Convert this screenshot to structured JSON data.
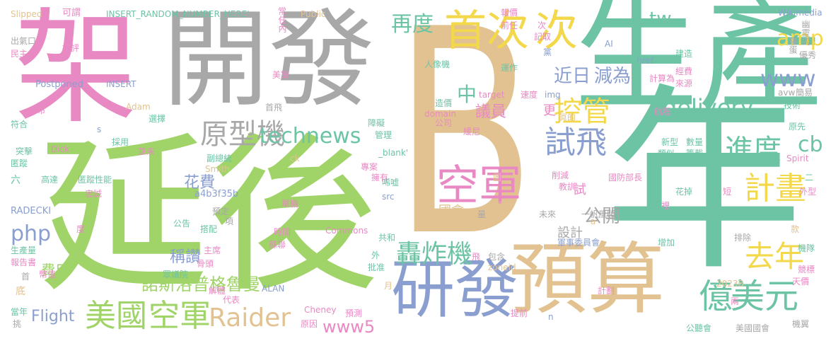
{
  "palette": {
    "green": "#a0d468",
    "teal": "#6cc4a4",
    "tan": "#e2c290",
    "pink": "#e889c3",
    "gray": "#a8a8a8",
    "blue": "#8a9fd0",
    "yellow": "#f2d84a",
    "orange": "#f0a868"
  },
  "words": [
    {
      "text": "B",
      "color": "tan"
    },
    {
      "text": "延後",
      "color": "green"
    },
    {
      "text": "生產",
      "color": "teal"
    },
    {
      "text": "年",
      "color": "teal"
    },
    {
      "text": "開發",
      "color": "gray"
    },
    {
      "text": "架",
      "color": "pink"
    },
    {
      "text": "預算",
      "color": "tan"
    },
    {
      "text": "研發",
      "color": "blue"
    },
    {
      "text": "首次",
      "color": "yellow"
    },
    {
      "text": "次",
      "color": "yellow"
    },
    {
      "text": "空軍",
      "color": "pink"
    },
    {
      "text": "美國",
      "color": "green"
    },
    {
      "text": "空軍",
      "color": "green"
    },
    {
      "text": "美元",
      "color": "teal"
    },
    {
      "text": "億",
      "color": "teal"
    },
    {
      "text": "去年",
      "color": "yellow"
    },
    {
      "text": "計畫",
      "color": "yellow"
    },
    {
      "text": "進度",
      "color": "teal"
    },
    {
      "text": "試飛",
      "color": "blue"
    },
    {
      "text": "控管",
      "color": "yellow"
    },
    {
      "text": "原型機",
      "color": "gray"
    },
    {
      "text": "technews",
      "color": "teal"
    },
    {
      "text": "delivery",
      "color": "teal"
    },
    {
      "text": "Raider",
      "color": "tan"
    },
    {
      "text": "轟炸機",
      "color": "teal"
    },
    {
      "text": "再度",
      "color": "teal"
    },
    {
      "text": "近日",
      "color": "blue"
    },
    {
      "text": "減為",
      "color": "blue"
    },
    {
      "text": "www",
      "color": "blue"
    },
    {
      "text": "amp",
      "color": "yellow"
    },
    {
      "text": "tw",
      "color": "teal"
    },
    {
      "text": "cb",
      "color": "teal"
    },
    {
      "text": "php",
      "color": "blue"
    },
    {
      "text": "www5",
      "color": "pink"
    },
    {
      "text": "公開",
      "color": "gray"
    },
    {
      "text": "中",
      "color": "teal"
    },
    {
      "text": "議員",
      "color": "pink"
    },
    {
      "text": "諾斯洛普格魯曼",
      "color": "green"
    },
    {
      "text": "Flight",
      "color": "blue"
    },
    {
      "text": "稱讚",
      "color": "blue"
    },
    {
      "text": "花費",
      "color": "blue"
    },
    {
      "text": "費用",
      "color": "green"
    },
    {
      "text": "設計",
      "color": "gray"
    },
    {
      "text": "更",
      "color": "pink"
    },
    {
      "text": "試",
      "color": "pink"
    },
    {
      "text": "國會",
      "color": "tan"
    },
    {
      "text": "INSERT_RANDOM_NUMBER_HERE'",
      "color": "teal"
    },
    {
      "text": "Slipped",
      "color": "tan"
    },
    {
      "text": "可謂",
      "color": "pink"
    },
    {
      "text": "Public",
      "color": "tan"
    },
    {
      "text": "報價",
      "color": "pink"
    },
    {
      "text": "Wikimedia",
      "color": "blue"
    },
    {
      "text": "前任",
      "color": "pink"
    },
    {
      "text": "記取",
      "color": "pink"
    },
    {
      "text": "次",
      "color": "pink"
    },
    {
      "text": "幽靈式",
      "color": "gray"
    },
    {
      "text": "羅蛋",
      "color": "gray"
    },
    {
      "text": "優秀",
      "color": "gray"
    },
    {
      "text": "出氣口",
      "color": "gray"
    },
    {
      "text": "民主",
      "color": "pink"
    },
    {
      "text": "批評",
      "color": "pink"
    },
    {
      "text": "任內",
      "color": "pink"
    },
    {
      "text": "人像機",
      "color": "teal"
    },
    {
      "text": "運作",
      "color": "teal"
    },
    {
      "text": "黨",
      "color": "blue"
    },
    {
      "text": "建造",
      "color": "teal"
    },
    {
      "text": "AI",
      "color": "blue"
    },
    {
      "text": "href",
      "color": "blue"
    },
    {
      "text": "經費",
      "color": "pink"
    },
    {
      "text": "來源",
      "color": "pink"
    },
    {
      "text": "計算為",
      "color": "pink"
    },
    {
      "text": "簡易",
      "color": "gray"
    },
    {
      "text": "技術",
      "color": "teal"
    },
    {
      "text": "avw",
      "color": "gray"
    },
    {
      "text": "Postponed",
      "color": "blue"
    },
    {
      "text": "INSERT",
      "color": "blue"
    },
    {
      "text": "美軍",
      "color": "pink"
    },
    {
      "text": "target",
      "color": "pink"
    },
    {
      "text": "img",
      "color": "blue"
    },
    {
      "text": "速度",
      "color": "pink"
    },
    {
      "text": "公布",
      "color": "pink"
    },
    {
      "text": "Adam",
      "color": "tan"
    },
    {
      "text": "首飛",
      "color": "gray"
    },
    {
      "text": "造價",
      "color": "teal"
    },
    {
      "text": "domain",
      "color": "pink"
    },
    {
      "text": "公司",
      "color": "pink"
    },
    {
      "text": "眞的",
      "color": "tan"
    },
    {
      "text": "航程",
      "color": "pink"
    },
    {
      "text": "符合",
      "color": "teal"
    },
    {
      "text": "選擇",
      "color": "teal"
    },
    {
      "text": "s",
      "color": "blue"
    },
    {
      "text": "障礙",
      "color": "teal"
    },
    {
      "text": "管理",
      "color": "teal"
    },
    {
      "text": "緩尼",
      "color": "pink"
    },
    {
      "text": "原先",
      "color": "teal"
    },
    {
      "text": "突擊",
      "color": "teal"
    },
    {
      "text": "Dick",
      "color": "pink"
    },
    {
      "text": "採用",
      "color": "teal"
    },
    {
      "text": "並未",
      "color": "pink"
    },
    {
      "text": "副總統",
      "color": "teal"
    },
    {
      "text": "_blank'",
      "color": "teal"
    },
    {
      "text": "新型",
      "color": "teal"
    },
    {
      "text": "數量",
      "color": "teal"
    },
    {
      "text": "類似",
      "color": "teal"
    },
    {
      "text": "籌載",
      "color": "teal"
    },
    {
      "text": "Spirit",
      "color": "pink"
    },
    {
      "text": "匿蹤",
      "color": "teal"
    },
    {
      "text": "Smith",
      "color": "tan"
    },
    {
      "text": "ck",
      "color": "tan"
    },
    {
      "text": "專案",
      "color": "pink"
    },
    {
      "text": "擁有",
      "color": "pink"
    },
    {
      "text": "削減",
      "color": "pink"
    },
    {
      "text": "教訓",
      "color": "pink"
    },
    {
      "text": "國防部長",
      "color": "pink"
    },
    {
      "text": "外型",
      "color": "pink"
    },
    {
      "text": "二",
      "color": "teal"
    },
    {
      "text": "六",
      "color": "teal"
    },
    {
      "text": "高達",
      "color": "teal"
    },
    {
      "text": "匿蹤性能",
      "color": "teal"
    },
    {
      "text": "圖",
      "color": "tan"
    },
    {
      "text": "a4b3f35b",
      "color": "blue"
    },
    {
      "text": "忠誠",
      "color": "pink"
    },
    {
      "text": "唏嘘",
      "color": "teal"
    },
    {
      "text": "src",
      "color": "blue"
    },
    {
      "text": "花掉",
      "color": "teal"
    },
    {
      "text": "短",
      "color": "pink"
    },
    {
      "text": "RADECKI",
      "color": "blue"
    },
    {
      "text": "單機",
      "color": "pink"
    },
    {
      "text": "最早",
      "color": "tan"
    },
    {
      "text": "量",
      "color": "gray"
    },
    {
      "text": "裡",
      "color": "pink"
    },
    {
      "text": "目標",
      "color": "teal"
    },
    {
      "text": "未來",
      "color": "gray"
    },
    {
      "text": "一帆風順",
      "color": "gray"
    },
    {
      "text": "預定",
      "color": "gray"
    },
    {
      "text": "項",
      "color": "gray"
    },
    {
      "text": "a",
      "color": "tan"
    },
    {
      "text": "度",
      "color": "pink"
    },
    {
      "text": "公告",
      "color": "teal"
    },
    {
      "text": "搭配",
      "color": "teal"
    },
    {
      "text": "時間",
      "color": "pink"
    },
    {
      "text": "Commons",
      "color": "pink"
    },
    {
      "text": "共和",
      "color": "teal"
    },
    {
      "text": "款",
      "color": "tan"
    },
    {
      "text": "生產量",
      "color": "teal"
    },
    {
      "text": "主席",
      "color": "pink"
    },
    {
      "text": "骨頭",
      "color": "pink"
    },
    {
      "text": "蘇聯",
      "color": "pink"
    },
    {
      "text": "軍事委員會",
      "color": "blue"
    },
    {
      "text": "排除",
      "color": "gray"
    },
    {
      "text": "增加",
      "color": "teal"
    },
    {
      "text": "機隊",
      "color": "teal"
    },
    {
      "text": "報告書",
      "color": "pink"
    },
    {
      "text": "首",
      "color": "gray"
    },
    {
      "text": "幣值",
      "color": "pink"
    },
    {
      "text": "眾議院",
      "color": "teal"
    },
    {
      "text": "外",
      "color": "teal"
    },
    {
      "text": "批准",
      "color": "teal"
    },
    {
      "text": "飛",
      "color": "pink"
    },
    {
      "text": "包含",
      "color": "gray"
    },
    {
      "text": "zoneid",
      "color": "tan"
    },
    {
      "text": "2023B",
      "color": "tan"
    },
    {
      "text": "競標",
      "color": "pink"
    },
    {
      "text": "天價",
      "color": "pink"
    },
    {
      "text": "底",
      "color": "tan"
    },
    {
      "text": "解體",
      "color": "pink"
    },
    {
      "text": "ALAN",
      "color": "blue"
    },
    {
      "text": "月",
      "color": "tan"
    },
    {
      "text": "計劃",
      "color": "pink"
    },
    {
      "text": "當年",
      "color": "teal"
    },
    {
      "text": "代表",
      "color": "pink"
    },
    {
      "text": "兩",
      "color": "pink"
    },
    {
      "text": "挑",
      "color": "gray"
    },
    {
      "text": "Cheney",
      "color": "pink"
    },
    {
      "text": "預測",
      "color": "pink"
    },
    {
      "text": "提前",
      "color": "pink"
    },
    {
      "text": "n",
      "color": "blue"
    },
    {
      "text": "原因",
      "color": "pink"
    },
    {
      "text": "公聽會",
      "color": "teal"
    },
    {
      "text": "美國國會",
      "color": "gray"
    },
    {
      "text": "機翼",
      "color": "gray"
    },
    {
      "text": "常",
      "color": "pink"
    }
  ]
}
